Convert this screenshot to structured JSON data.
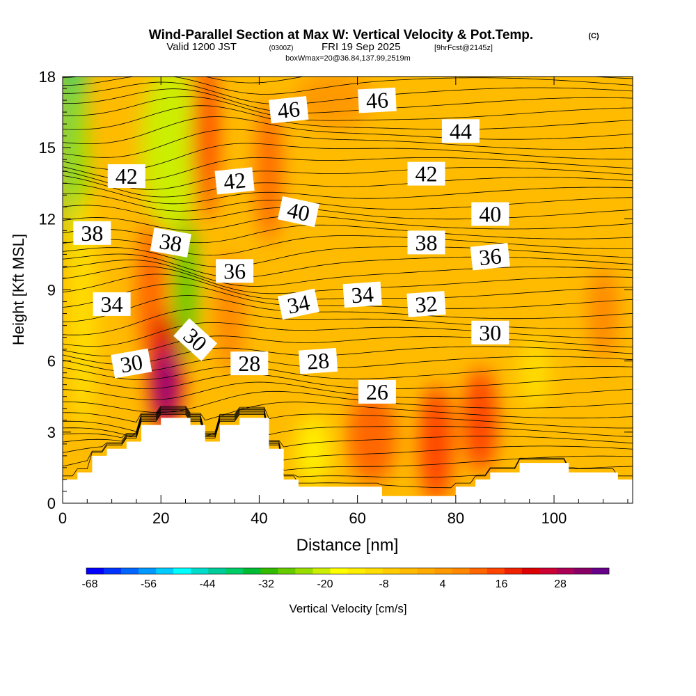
{
  "header": {
    "title": "Wind-Parallel Section at Max W: Vertical Velocity & Pot.Temp.",
    "copyright": "(C)",
    "valid_prefix": "Valid 1200 JST",
    "valid_utc": "(0300Z)",
    "valid_date": "FRI 19 Sep 2025",
    "forecast_info": "[9hrFcst@2145z]",
    "box_info": "boxWmax=20@36.84,137.99,2519m"
  },
  "chart_data": {
    "type": "heatmap",
    "title": "Wind-Parallel Section at Max W: Vertical Velocity & Pot.Temp.",
    "xlabel": "Distance [nm]",
    "ylabel": "Height [Kft MSL]",
    "xlim": [
      0,
      116
    ],
    "ylim": [
      0,
      18
    ],
    "x_ticks": [
      0,
      20,
      40,
      60,
      80,
      100
    ],
    "y_ticks": [
      0,
      3,
      6,
      9,
      12,
      15,
      18
    ],
    "grid": false,
    "colorbar": {
      "label": "Vertical Velocity [cm/s]",
      "tick_labels": [
        "-68",
        "-56",
        "-44",
        "-32",
        "-20",
        "-8",
        "4",
        "16",
        "28"
      ],
      "colors": [
        "#0000ff",
        "#0033ff",
        "#0066ff",
        "#0099ff",
        "#00ccff",
        "#00ffff",
        "#00ddcc",
        "#00cc99",
        "#00cc66",
        "#00bb33",
        "#33bb00",
        "#66cc00",
        "#99dd00",
        "#ccee00",
        "#ffff00",
        "#ffee00",
        "#ffdd00",
        "#ffcc00",
        "#ffbb00",
        "#ffaa00",
        "#ff9900",
        "#ff8800",
        "#ff6600",
        "#ff4400",
        "#ee2200",
        "#dd0000",
        "#cc0033",
        "#aa0055",
        "#880066",
        "#660088"
      ]
    },
    "isentropes_label": "Pot.Temp.",
    "isentrope_labels": [
      {
        "text": "46",
        "x": 46,
        "y": 16.6,
        "angle": -6
      },
      {
        "text": "46",
        "x": 64,
        "y": 17.0,
        "angle": -3
      },
      {
        "text": "44",
        "x": 81,
        "y": 15.7,
        "angle": 0
      },
      {
        "text": "42",
        "x": 13,
        "y": 13.8,
        "angle": 0
      },
      {
        "text": "42",
        "x": 35,
        "y": 13.6,
        "angle": -6
      },
      {
        "text": "42",
        "x": 74,
        "y": 13.9,
        "angle": 0
      },
      {
        "text": "40",
        "x": 48,
        "y": 12.3,
        "angle": 12
      },
      {
        "text": "40",
        "x": 87,
        "y": 12.2,
        "angle": 0
      },
      {
        "text": "38",
        "x": 6,
        "y": 11.4,
        "angle": 0
      },
      {
        "text": "38",
        "x": 22,
        "y": 11.0,
        "angle": 10
      },
      {
        "text": "38",
        "x": 74,
        "y": 11.0,
        "angle": 0
      },
      {
        "text": "36",
        "x": 35,
        "y": 9.8,
        "angle": 0
      },
      {
        "text": "36",
        "x": 87,
        "y": 10.4,
        "angle": -6
      },
      {
        "text": "34",
        "x": 10,
        "y": 8.4,
        "angle": 0
      },
      {
        "text": "34",
        "x": 48,
        "y": 8.4,
        "angle": -12
      },
      {
        "text": "34",
        "x": 61,
        "y": 8.8,
        "angle": -4
      },
      {
        "text": "32",
        "x": 74,
        "y": 8.4,
        "angle": -4
      },
      {
        "text": "30",
        "x": 27,
        "y": 6.9,
        "angle": 42
      },
      {
        "text": "30",
        "x": 14,
        "y": 5.9,
        "angle": -10
      },
      {
        "text": "30",
        "x": 87,
        "y": 7.2,
        "angle": 0
      },
      {
        "text": "28",
        "x": 38,
        "y": 5.9,
        "angle": 0
      },
      {
        "text": "28",
        "x": 52,
        "y": 6.0,
        "angle": -4
      },
      {
        "text": "26",
        "x": 64,
        "y": 4.7,
        "angle": 0
      }
    ],
    "terrain": [
      [
        0,
        1.0
      ],
      [
        3,
        1.0
      ],
      [
        3,
        1.3
      ],
      [
        6,
        1.3
      ],
      [
        6,
        2.0
      ],
      [
        9,
        2.0
      ],
      [
        9,
        2.3
      ],
      [
        13,
        2.3
      ],
      [
        13,
        2.6
      ],
      [
        16,
        2.6
      ],
      [
        16,
        3.3
      ],
      [
        20,
        3.3
      ],
      [
        20,
        3.6
      ],
      [
        26,
        3.6
      ],
      [
        26,
        3.3
      ],
      [
        29,
        3.3
      ],
      [
        29,
        2.6
      ],
      [
        32,
        2.6
      ],
      [
        32,
        3.3
      ],
      [
        36,
        3.3
      ],
      [
        36,
        3.6
      ],
      [
        42,
        3.6
      ],
      [
        42,
        2.3
      ],
      [
        45,
        2.3
      ],
      [
        45,
        1.0
      ],
      [
        48,
        1.0
      ],
      [
        48,
        0.7
      ],
      [
        65,
        0.7
      ],
      [
        65,
        0.3
      ],
      [
        80,
        0.3
      ],
      [
        80,
        0.7
      ],
      [
        84,
        0.7
      ],
      [
        84,
        1.0
      ],
      [
        87,
        1.0
      ],
      [
        87,
        1.3
      ],
      [
        93,
        1.3
      ],
      [
        93,
        1.7
      ],
      [
        103,
        1.7
      ],
      [
        103,
        1.3
      ],
      [
        113,
        1.3
      ],
      [
        113,
        1.0
      ],
      [
        116,
        1.0
      ]
    ],
    "velocity_blobs": [
      {
        "x": 2,
        "y": 16,
        "rx": 3,
        "ry": 5,
        "color": "#33cc66"
      },
      {
        "x": 3,
        "y": 13,
        "rx": 2.5,
        "ry": 5,
        "color": "#99dd00"
      },
      {
        "x": 4,
        "y": 8,
        "rx": 3,
        "ry": 5,
        "color": "#ffdd00"
      },
      {
        "x": 22,
        "y": 15,
        "rx": 6,
        "ry": 3.5,
        "color": "#ccee00"
      },
      {
        "x": 25,
        "y": 9,
        "rx": 2.5,
        "ry": 3,
        "color": "#66cc00"
      },
      {
        "x": 29,
        "y": 15.5,
        "rx": 2.5,
        "ry": 3.5,
        "color": "#ff4400"
      },
      {
        "x": 42,
        "y": 14,
        "rx": 2.5,
        "ry": 3,
        "color": "#ff6600"
      },
      {
        "x": 18,
        "y": 9,
        "rx": 3,
        "ry": 3,
        "color": "#ff6600"
      },
      {
        "x": 21,
        "y": 5.5,
        "rx": 3.5,
        "ry": 2.5,
        "color": "#dd0000"
      },
      {
        "x": 21,
        "y": 5.0,
        "rx": 1.6,
        "ry": 1.5,
        "color": "#660088"
      },
      {
        "x": 34,
        "y": 8,
        "rx": 3,
        "ry": 2.5,
        "color": "#ff8800"
      },
      {
        "x": 51,
        "y": 2.2,
        "rx": 3.5,
        "ry": 1.5,
        "color": "#ffee00"
      },
      {
        "x": 63,
        "y": 2.8,
        "rx": 5,
        "ry": 2.0,
        "color": "#ff6600"
      },
      {
        "x": 76,
        "y": 2.5,
        "rx": 3.5,
        "ry": 2.5,
        "color": "#ff4400"
      },
      {
        "x": 85,
        "y": 3.5,
        "rx": 3.5,
        "ry": 2.2,
        "color": "#ff4400"
      },
      {
        "x": 96,
        "y": 5.5,
        "rx": 3,
        "ry": 1.5,
        "color": "#ffdd00"
      },
      {
        "x": 110,
        "y": 8,
        "rx": 3,
        "ry": 2,
        "color": "#ff8800"
      },
      {
        "x": 55,
        "y": 17,
        "rx": 8,
        "ry": 1.2,
        "color": "#ff9900"
      }
    ]
  }
}
